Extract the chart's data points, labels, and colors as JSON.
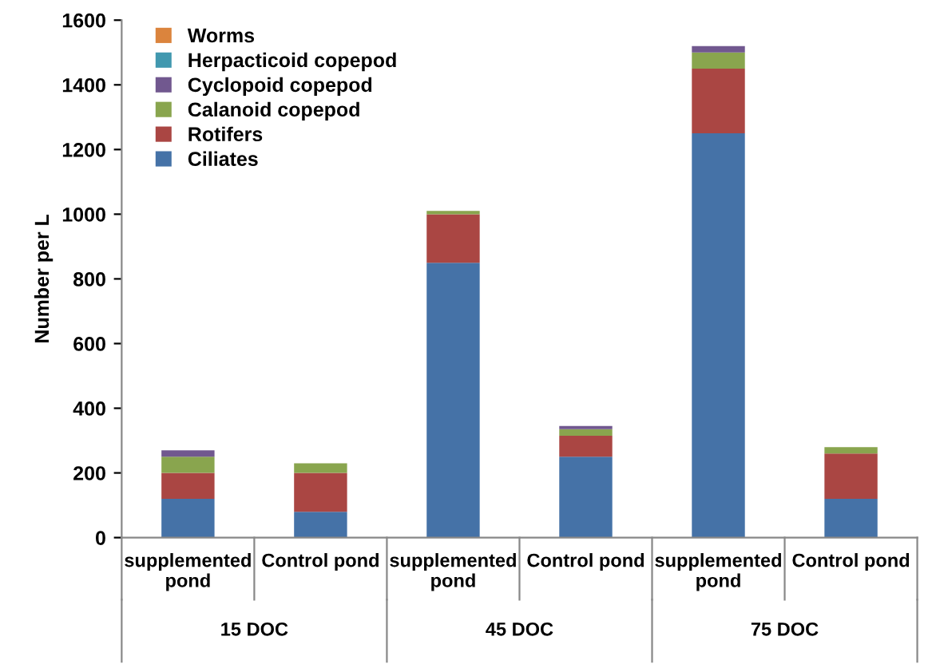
{
  "chart_data": {
    "type": "bar",
    "stacked": true,
    "ylabel": "Number per L",
    "categories": [
      "supplemented pond",
      "Control pond",
      "supplemented pond",
      "Control pond",
      "supplemented pond",
      "Control pond"
    ],
    "annotations": [
      "15 DOC",
      "45 DOC",
      "75 DOC"
    ],
    "series": [
      {
        "name": "Ciliates",
        "color": "#4572a7",
        "values": [
          120,
          80,
          850,
          250,
          1250,
          120
        ]
      },
      {
        "name": "Rotifers",
        "color": "#aa4643",
        "values": [
          80,
          120,
          150,
          65,
          200,
          140
        ]
      },
      {
        "name": "Calanoid copepod",
        "color": "#89a54e",
        "values": [
          50,
          30,
          10,
          20,
          50,
          20
        ]
      },
      {
        "name": "Cyclopoid copepod",
        "color": "#71588f",
        "values": [
          20,
          null,
          null,
          10,
          20,
          null
        ]
      },
      {
        "name": "Herpacticoid copepod",
        "color": "#4198af",
        "values": [
          null,
          null,
          null,
          null,
          null,
          null
        ]
      },
      {
        "name": "Worms",
        "color": "#db843d",
        "values": [
          null,
          null,
          null,
          null,
          null,
          null
        ]
      }
    ],
    "ylim": [
      0,
      1600
    ],
    "yticks": [
      0,
      200,
      400,
      600,
      800,
      1000,
      1200,
      1400,
      1600
    ],
    "grid": false,
    "legend": "top left"
  }
}
